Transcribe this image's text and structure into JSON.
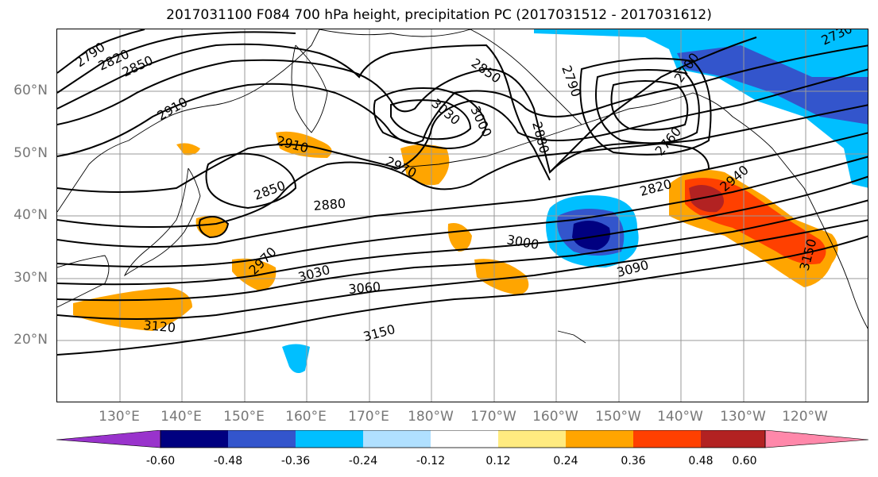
{
  "title": "2017031100 F084 700 hPa height, precipitation PC (2017031512 - 2017031612)",
  "lat_labels": [
    "60°N",
    "50°N",
    "40°N",
    "30°N",
    "20°N"
  ],
  "lon_labels": [
    "130°E",
    "140°E",
    "150°E",
    "160°E",
    "170°E",
    "180°W",
    "170°W",
    "160°W",
    "150°W",
    "140°W",
    "130°W",
    "120°W"
  ],
  "contour_labels": [
    "2790",
    "2820",
    "2850",
    "2910",
    "2850",
    "2790",
    "3030",
    "3000",
    "2880",
    "2700",
    "2730",
    "2760",
    "2820",
    "2940",
    "2910",
    "2970",
    "2850",
    "2880",
    "2970",
    "3000",
    "3030",
    "3060",
    "3090",
    "3120",
    "3150",
    "3150"
  ],
  "colorbar": {
    "ticks": [
      "-0.60",
      "-0.48",
      "-0.36",
      "-0.24",
      "-0.12",
      "0.12",
      "0.24",
      "0.36",
      "0.48",
      "0.60"
    ],
    "colors": [
      "#9933cc",
      "#000080",
      "#3355cc",
      "#00bfff",
      "#b0e0ff",
      "#ffffff",
      "#ffeb80",
      "#ffa500",
      "#ff4000",
      "#b22222",
      "#ff88aa"
    ]
  }
}
